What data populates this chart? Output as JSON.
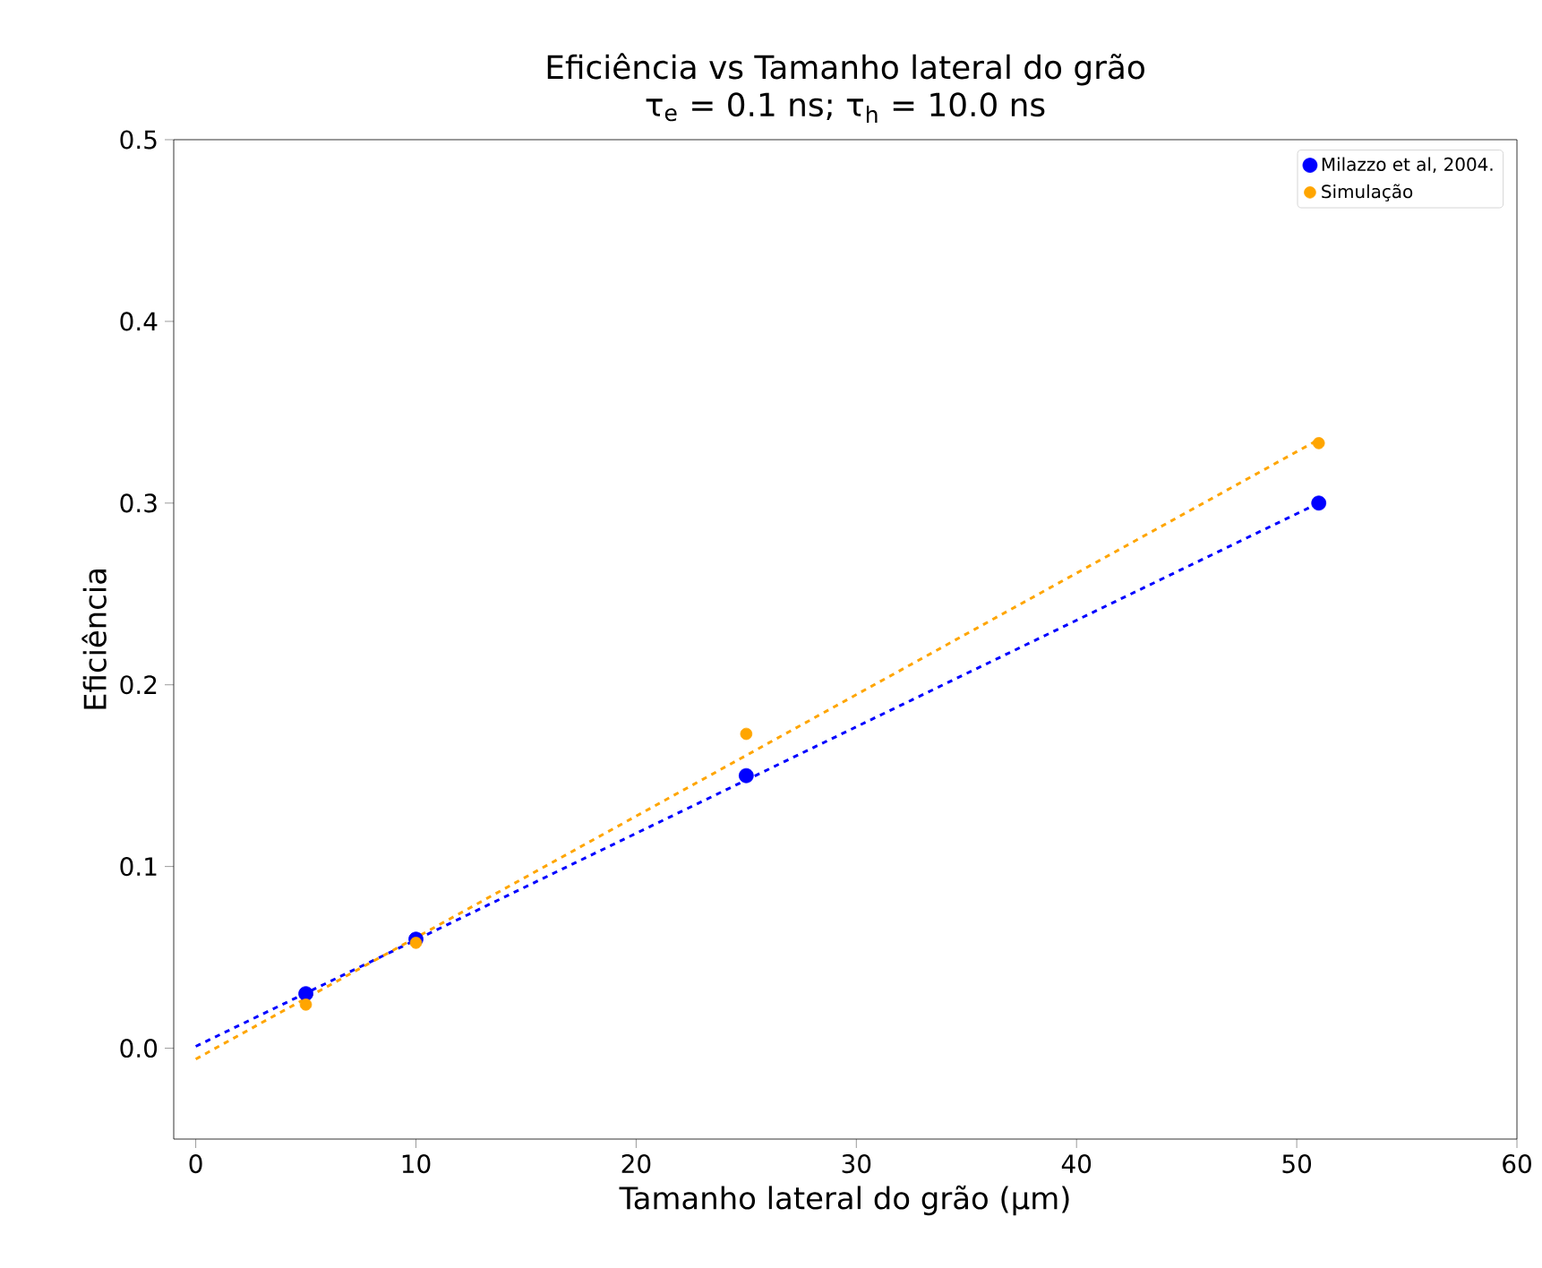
{
  "chart_data": {
    "type": "scatter",
    "title": "Eficiência vs Tamanho lateral do grão",
    "subtitle": "τ$_{e}$ = 0.1 ns; τ$_{h}$ = 10.0 ns",
    "xlabel": "Tamanho lateral do grão (μm)",
    "ylabel": "Eficiência",
    "series": [
      {
        "name": "Milazzo et al, 2004.",
        "color": "#0000ff",
        "x": [
          5,
          10,
          25,
          51
        ],
        "values": [
          0.03,
          0.06,
          0.15,
          0.3
        ]
      },
      {
        "name": "Simulação",
        "color": "#ffa500",
        "x": [
          5,
          10,
          25,
          51
        ],
        "values": [
          0.024,
          0.058,
          0.173,
          0.333
        ]
      },
      {
        "type": "line",
        "color": "#0000ff",
        "x": [
          0,
          51
        ],
        "values": [
          0.001,
          0.3
        ],
        "line_style": "dashed",
        "marker": "none"
      },
      {
        "type": "line",
        "color": "#ffa500",
        "x": [
          0,
          51
        ],
        "values": [
          -0.006,
          0.335
        ],
        "line_style": "dashed",
        "marker": "none"
      }
    ],
    "xlim": [
      -1,
      60
    ],
    "ylim": [
      -0.05,
      0.5
    ],
    "xticks": [
      0,
      10,
      20,
      30,
      40,
      50,
      60
    ],
    "yticks": [
      {
        "value": 0.0,
        "label": "0.0"
      },
      {
        "value": 0.1,
        "label": "0.1"
      },
      {
        "value": 0.2,
        "label": "0.2"
      },
      {
        "value": 0.3,
        "label": "0.3"
      },
      {
        "value": 0.4,
        "label": "0.4"
      },
      {
        "value": 0.5,
        "label": "0.5"
      }
    ],
    "marker": "circle",
    "legend": "top right",
    "grid": false
  }
}
